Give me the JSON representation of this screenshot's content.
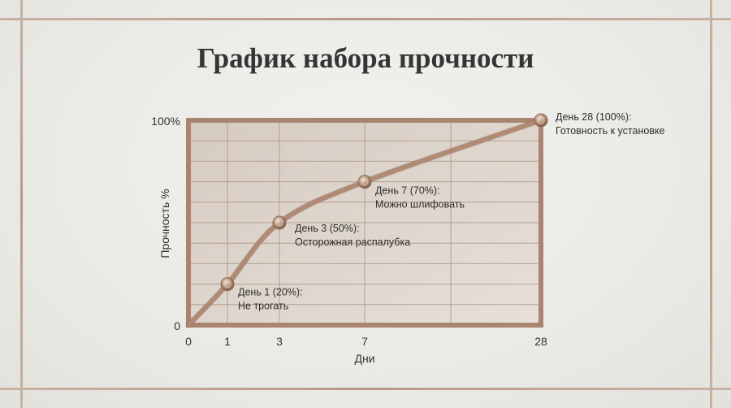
{
  "title": "График набора прочности",
  "chart_data": {
    "type": "line",
    "title": "График набора прочности",
    "xlabel": "Дни",
    "ylabel": "Прочность %",
    "x_ticks": [
      "0",
      "1",
      "3",
      "7",
      "28"
    ],
    "y_ticks": [
      "0",
      "100%"
    ],
    "x_scale": "non-uniform (ticks evenly unrelated to value)",
    "ylim": [
      0,
      100
    ],
    "grid": true,
    "points": [
      {
        "x": 0,
        "y": 0
      },
      {
        "x": 1,
        "y": 20
      },
      {
        "x": 3,
        "y": 50
      },
      {
        "x": 7,
        "y": 70
      },
      {
        "x": 28,
        "y": 100
      }
    ],
    "annotations": [
      {
        "x": 1,
        "y": 20,
        "line1": "День 1 (20%):",
        "line2": "Не трогать"
      },
      {
        "x": 3,
        "y": 50,
        "line1": "День 3 (50%):",
        "line2": "Осторожная распалубка"
      },
      {
        "x": 7,
        "y": 70,
        "line1": "День 7 (70%):",
        "line2": "Можно шлифовать"
      },
      {
        "x": 28,
        "y": 100,
        "line1": "День 28 (100%):",
        "line2": "Готовность к установке"
      }
    ],
    "colors": {
      "line": "#b08a72",
      "frame": "#a98470",
      "panel": "#dcd2c9",
      "grid": "#9a7c6c"
    }
  }
}
